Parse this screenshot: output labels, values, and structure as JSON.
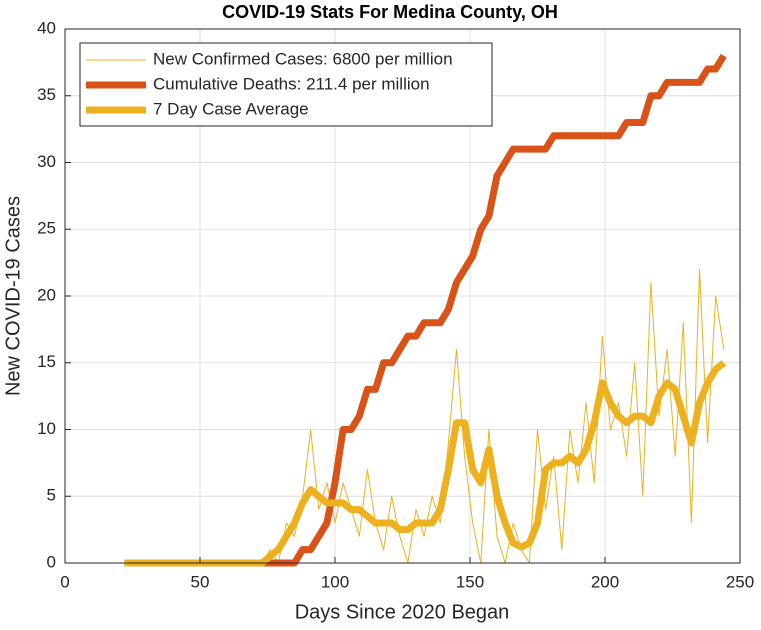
{
  "chart_data": {
    "type": "line",
    "title": "COVID-19 Stats For Medina County, OH",
    "x_label": "Days Since 2020 Began",
    "y_label": "New COVID-19 Cases",
    "xlim": [
      0,
      250
    ],
    "xticks": [
      0,
      50,
      100,
      150,
      200,
      250
    ],
    "ylim": [
      0,
      40
    ],
    "yticks": [
      0,
      5,
      10,
      15,
      20,
      25,
      30,
      35,
      40
    ],
    "grid": true,
    "legend": "upper-left",
    "x": [
      22,
      25,
      28,
      31,
      34,
      37,
      40,
      43,
      46,
      49,
      52,
      55,
      58,
      61,
      64,
      67,
      70,
      73,
      76,
      79,
      82,
      85,
      88,
      91,
      94,
      97,
      100,
      103,
      106,
      109,
      112,
      115,
      118,
      121,
      124,
      127,
      130,
      133,
      136,
      139,
      142,
      145,
      148,
      151,
      154,
      157,
      160,
      163,
      166,
      169,
      172,
      175,
      178,
      181,
      184,
      187,
      190,
      193,
      196,
      199,
      202,
      205,
      208,
      211,
      214,
      217,
      220,
      223,
      226,
      229,
      232,
      235,
      238,
      241,
      244
    ],
    "series": [
      {
        "name": "New Confirmed Cases: 6800 per million",
        "color": "#EDB120",
        "width": 1,
        "values": [
          0,
          0,
          0,
          0,
          0,
          0,
          0,
          0,
          0,
          0,
          0,
          0,
          0,
          0,
          0,
          0,
          0,
          0,
          1,
          0,
          3,
          2,
          5,
          10,
          4,
          6,
          3,
          6,
          4,
          2,
          7,
          3,
          1,
          5,
          2,
          0,
          4,
          2,
          5,
          3,
          9,
          16,
          8,
          3,
          0,
          10,
          2,
          0,
          3,
          1,
          0,
          10,
          4,
          8,
          1,
          10,
          6,
          12,
          6,
          17,
          10,
          12,
          8,
          15,
          5,
          21,
          11,
          16,
          8,
          18,
          3,
          22,
          9,
          20,
          16
        ]
      },
      {
        "name": "Cumulative Deaths: 211.4 per million",
        "color": "#D95319",
        "width": 7,
        "values": [
          0,
          0,
          0,
          0,
          0,
          0,
          0,
          0,
          0,
          0,
          0,
          0,
          0,
          0,
          0,
          0,
          0,
          0,
          0,
          0,
          0,
          0,
          1,
          1,
          2,
          3,
          6,
          10,
          10,
          11,
          13,
          13,
          15,
          15,
          16,
          17,
          17,
          18,
          18,
          18,
          19,
          21,
          22,
          23,
          25,
          26,
          29,
          30,
          31,
          31,
          31,
          31,
          31,
          32,
          32,
          32,
          32,
          32,
          32,
          32,
          32,
          32,
          33,
          33,
          33,
          35,
          35,
          36,
          36,
          36,
          36,
          36,
          37,
          37,
          38
        ]
      },
      {
        "name": "7 Day Case Average",
        "color": "#EDB120",
        "width": 7,
        "values": [
          0,
          0,
          0,
          0,
          0,
          0,
          0,
          0,
          0,
          0,
          0,
          0,
          0,
          0,
          0,
          0,
          0,
          0,
          0.5,
          1,
          2,
          3,
          4.5,
          5.5,
          5,
          4.5,
          4.5,
          4.5,
          4,
          4,
          3.5,
          3,
          3,
          3,
          2.5,
          2.5,
          3,
          3,
          3,
          4,
          7,
          10.5,
          10.5,
          7,
          6,
          8.5,
          5,
          3,
          1.5,
          1.2,
          1.5,
          3,
          7,
          7.5,
          7.5,
          8,
          7.5,
          8.5,
          10.5,
          13.5,
          12,
          11,
          10.5,
          11,
          11,
          10.5,
          12.5,
          13.5,
          13,
          11,
          9,
          12,
          13.5,
          14.5,
          15
        ]
      }
    ]
  }
}
